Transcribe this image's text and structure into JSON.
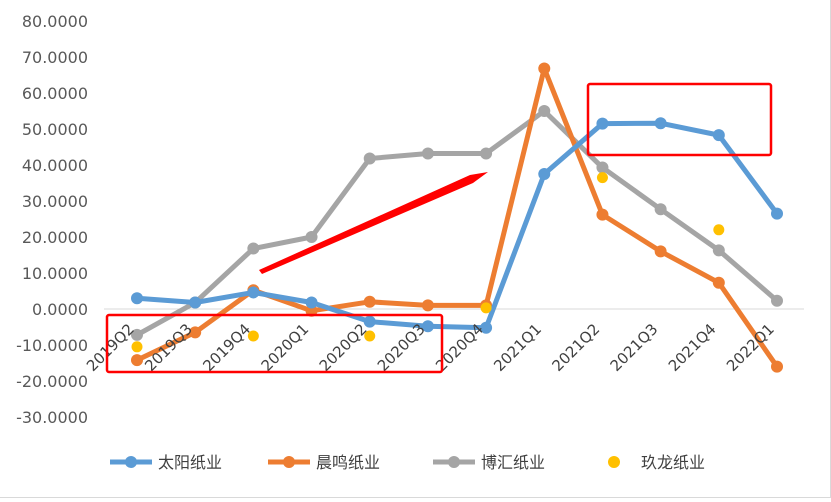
{
  "chart_data": {
    "type": "line",
    "title": "",
    "xlabel": "",
    "ylabel": "",
    "categories": [
      "2019Q2",
      "2019Q3",
      "2019Q4",
      "2020Q1",
      "2020Q2",
      "2020Q3",
      "2020Q4",
      "2021Q1",
      "2021Q2",
      "2021Q3",
      "2021Q4",
      "2022Q1"
    ],
    "ylim": [
      -30,
      80
    ],
    "yticks": [
      80,
      70,
      60,
      50,
      40,
      30,
      20,
      10,
      0,
      -10,
      -20,
      -30
    ],
    "ytick_labels": [
      "80.0000",
      "70.0000",
      "60.0000",
      "50.0000",
      "40.0000",
      "30.0000",
      "20.0000",
      "10.0000",
      "0.0000",
      "-10.0000",
      "-20.0000",
      "-30.0000"
    ],
    "grid": false,
    "legend_position": "bottom",
    "series": [
      {
        "name": "太阳纸业",
        "color": "#5B9BD5",
        "style": "line-markers",
        "values": [
          3.0,
          1.8,
          4.6,
          1.8,
          -3.5,
          -4.8,
          -5.2,
          37.5,
          51.5,
          51.6,
          48.3,
          26.5
        ]
      },
      {
        "name": "晨鸣纸业",
        "color": "#ED7D31",
        "style": "line-markers",
        "values": [
          -14.2,
          -6.5,
          5.2,
          -0.5,
          2.0,
          1.0,
          1.0,
          66.8,
          26.2,
          16.0,
          7.3,
          -16.0
        ]
      },
      {
        "name": "博汇纸业",
        "color": "#A5A5A5",
        "style": "line-markers",
        "values": [
          -7.2,
          1.8,
          16.8,
          20.0,
          41.8,
          43.2,
          43.2,
          55.0,
          39.3,
          27.7,
          16.3,
          2.3
        ]
      },
      {
        "name": "玖龙纸业",
        "color": "#FFC000",
        "style": "markers",
        "values": [
          -10.5,
          null,
          -7.5,
          null,
          -7.5,
          null,
          0.3,
          null,
          36.5,
          null,
          22.0,
          null
        ]
      }
    ],
    "annotations": [
      {
        "type": "box",
        "color": "#FF0000",
        "covers": "2019Q2-2020Q3 negative region"
      },
      {
        "type": "box",
        "color": "#FF0000",
        "covers": "2021Q2-2021Q4 peak region"
      },
      {
        "type": "arrow",
        "color": "#FF0000",
        "direction": "up-right"
      }
    ]
  }
}
